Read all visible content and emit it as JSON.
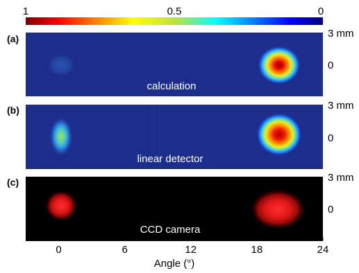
{
  "chart_data": {
    "type": "heatmap",
    "colorbar": {
      "tick_labels": [
        "1",
        "0.5",
        "0"
      ],
      "tick_values": [
        1,
        0.5,
        0
      ],
      "range": [
        1,
        0
      ],
      "colormap": "jet (1 = red, left; 0 = dark blue, right)"
    },
    "xlabel": "Angle (°)",
    "xlim": [
      -3,
      24
    ],
    "xticks": [
      0,
      6,
      12,
      18,
      24
    ],
    "xtick_labels": [
      "0",
      "6",
      "12",
      "18",
      "24"
    ],
    "y_tick_labels": [
      "3 mm",
      "0"
    ],
    "panels": [
      {
        "letter": "(a)",
        "caption": "calculation",
        "background": "#1c2d8c",
        "spots": [
          {
            "x": 0,
            "peak": 0.06,
            "width_deg": 1.6
          },
          {
            "x": 20.5,
            "peak": 1.0,
            "width_deg": 2.5
          }
        ]
      },
      {
        "letter": "(b)",
        "caption": "linear detector",
        "background": "#1c2d8c",
        "spots": [
          {
            "x": 0,
            "peak": 0.45,
            "width_deg": 1.6
          },
          {
            "x": 20.5,
            "peak": 0.95,
            "width_deg": 2.5
          }
        ]
      },
      {
        "letter": "(c)",
        "caption": "CCD camera",
        "background": "#000000",
        "spots": [
          {
            "x": 0,
            "peak": 0.9,
            "width_deg": 1.6
          },
          {
            "x": 20.5,
            "peak": 1.0,
            "width_deg": 3.6
          }
        ]
      }
    ]
  }
}
